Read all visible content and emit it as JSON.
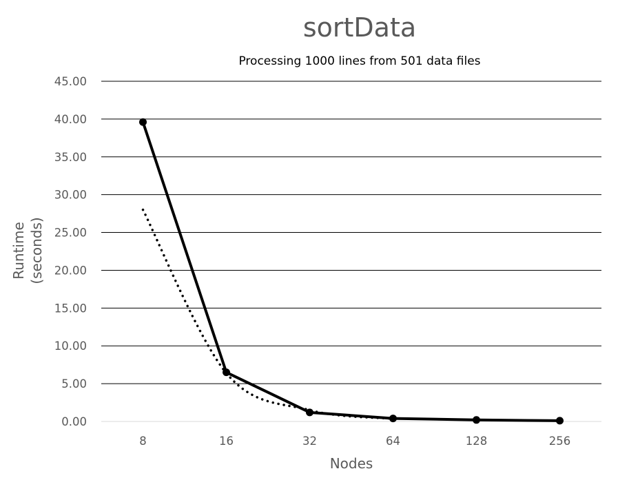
{
  "chart_data": {
    "type": "line",
    "title": "sortData",
    "subtitle": "Processing 1000 lines from 501 data files",
    "xlabel": "Nodes",
    "ylabel_lines": [
      "Runtime",
      "(seconds)"
    ],
    "categories": [
      "8",
      "16",
      "32",
      "64",
      "128",
      "256"
    ],
    "y_ticks": [
      "0.00",
      "5.00",
      "10.00",
      "15.00",
      "20.00",
      "25.00",
      "30.00",
      "35.00",
      "40.00",
      "45.00"
    ],
    "ylim": [
      0,
      45
    ],
    "grid": true,
    "legend": "none",
    "series": [
      {
        "values": [
          39.6,
          6.5,
          1.2,
          0.4,
          0.2,
          0.1
        ],
        "style": "solid",
        "markers": true,
        "color": "#000000"
      },
      {
        "values": [
          28.0,
          6.4,
          1.5,
          0.35,
          null,
          null
        ],
        "style": "dotted",
        "trendline": "power",
        "markers": false,
        "color": "#000000"
      }
    ]
  }
}
